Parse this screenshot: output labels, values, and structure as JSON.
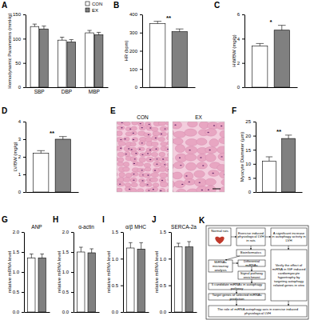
{
  "chart_data": [
    {
      "type": "bar",
      "title": "A",
      "y_label": "Hemodynamic Parameters (mmHg)",
      "categories": [
        "SBP",
        "DBP",
        "MBP"
      ],
      "series": [
        {
          "name": "CON",
          "color": "#ffffff",
          "values": [
            125,
            97,
            112
          ],
          "errors": [
            5,
            6,
            5
          ]
        },
        {
          "name": "EX",
          "color": "#808080",
          "values": [
            120,
            93,
            108
          ],
          "errors": [
            6,
            5,
            5
          ]
        }
      ],
      "ylim": [
        0,
        150
      ],
      "yticks": [
        0,
        50,
        100,
        150
      ],
      "legend": "top"
    },
    {
      "type": "bar",
      "title": "B",
      "y_label": "HR (bpm)",
      "categories": [
        null,
        null
      ],
      "values": [
        350,
        305
      ],
      "errors": [
        12,
        15
      ],
      "colors": [
        "#ffffff",
        "#808080"
      ],
      "ylim": [
        0,
        400
      ],
      "yticks": [
        0,
        100,
        200,
        300,
        400
      ],
      "annotations": [
        "**"
      ]
    },
    {
      "type": "bar",
      "title": "C",
      "y_label": "HW/BW (mg/g)",
      "categories": [
        null,
        null
      ],
      "values": [
        3.4,
        4.7
      ],
      "errors": [
        0.2,
        0.4
      ],
      "colors": [
        "#ffffff",
        "#808080"
      ],
      "ylim": [
        0,
        6
      ],
      "yticks": [
        0,
        2,
        4,
        6
      ],
      "annotations": [
        "*"
      ]
    },
    {
      "type": "bar",
      "title": "D",
      "y_label": "LV/BW (mg/g)",
      "categories": [
        null,
        null
      ],
      "values": [
        2.2,
        3.0
      ],
      "errors": [
        0.15,
        0.15
      ],
      "colors": [
        "#ffffff",
        "#808080"
      ],
      "ylim": [
        0,
        4
      ],
      "yticks": [
        0,
        1,
        2,
        3,
        4
      ],
      "annotations": [
        "**"
      ]
    },
    {
      "type": "bar",
      "title": "F",
      "y_label": "Myocyte Diameter (μm)",
      "categories": [
        null,
        null
      ],
      "values": [
        11,
        19
      ],
      "errors": [
        1.5,
        1.2
      ],
      "colors": [
        "#ffffff",
        "#808080"
      ],
      "ylim": [
        0,
        25
      ],
      "yticks": [
        0,
        5,
        10,
        15,
        20,
        25
      ],
      "annotations": [
        "**"
      ]
    },
    {
      "type": "bar",
      "title": "G",
      "subtitle": "ANP",
      "y_label": "relative mRNA level",
      "categories": [
        null,
        null
      ],
      "values": [
        1.35,
        1.35
      ],
      "errors": [
        0.1,
        0.1
      ],
      "colors": [
        "#ffffff",
        "#808080"
      ],
      "ylim": [
        0,
        2
      ],
      "yticks": [
        {
          "value": 0,
          "label": "0.0"
        },
        {
          "value": 0.5,
          "label": "0.5"
        },
        {
          "value": 1,
          "label": "1.0"
        },
        {
          "value": 1.5,
          "label": "1.5"
        },
        {
          "value": 2,
          "label": "2.0"
        }
      ]
    },
    {
      "type": "bar",
      "title": "H",
      "subtitle": "α-actin",
      "y_label": "relative mRNA level",
      "categories": [
        null,
        null
      ],
      "values": [
        1.5,
        1.48
      ],
      "errors": [
        0.12,
        0.1
      ],
      "colors": [
        "#ffffff",
        "#808080"
      ],
      "ylim": [
        0,
        2
      ],
      "yticks": [
        {
          "value": 0,
          "label": "0.0"
        },
        {
          "value": 0.5,
          "label": "0.5"
        },
        {
          "value": 1,
          "label": "1.0"
        },
        {
          "value": 1.5,
          "label": "1.5"
        },
        {
          "value": 2,
          "label": "2.0"
        }
      ]
    },
    {
      "type": "bar",
      "title": "I",
      "subtitle": "α/β MHC",
      "y_label": "relative mRNA level",
      "categories": [
        null,
        null
      ],
      "values": [
        1.2,
        1.18
      ],
      "errors": [
        0.1,
        0.12
      ],
      "colors": [
        "#ffffff",
        "#808080"
      ],
      "ylim": [
        0,
        1.5
      ],
      "yticks": [
        {
          "value": 0,
          "label": "0.0"
        },
        {
          "value": 0.5,
          "label": "0.5"
        },
        {
          "value": 1,
          "label": "1.0"
        },
        {
          "value": 1.5,
          "label": "1.5"
        }
      ]
    },
    {
      "type": "bar",
      "title": "J",
      "subtitle": "SERCA-2a",
      "y_label": "relative mRNA level",
      "categories": [
        null,
        null
      ],
      "values": [
        1.22,
        1.22
      ],
      "errors": [
        0.07,
        0.1
      ],
      "colors": [
        "#ffffff",
        "#808080"
      ],
      "ylim": [
        0,
        1.5
      ],
      "yticks": [
        {
          "value": 0,
          "label": "0.0"
        },
        {
          "value": 0.5,
          "label": "0.5"
        },
        {
          "value": 1,
          "label": "1.0"
        },
        {
          "value": 1.5,
          "label": "1.5"
        }
      ]
    }
  ],
  "histology": {
    "title": "E",
    "labels": [
      "CON",
      "EX"
    ]
  },
  "flowchart": {
    "title": "K",
    "nodes": [
      "Normal rats",
      "Exercise induced physiological LVH in rats",
      "A significant increase in autophagy activity in LVH",
      "Bioinformatics",
      "MiRNAs microarray analysis",
      "Differential miRNAs",
      "Signal pathway enrichment",
      "5 candidate miRNAs in autophagy pathway",
      "Target genes of selected miRNAs prediction",
      "Verify the effect of miRNA in IGF induced cardiomyocyte hypertrophy by targeting autophagy related genes in vitro",
      "The role of miRNA-autophagy axis in exercise induced physiological LVH"
    ]
  }
}
